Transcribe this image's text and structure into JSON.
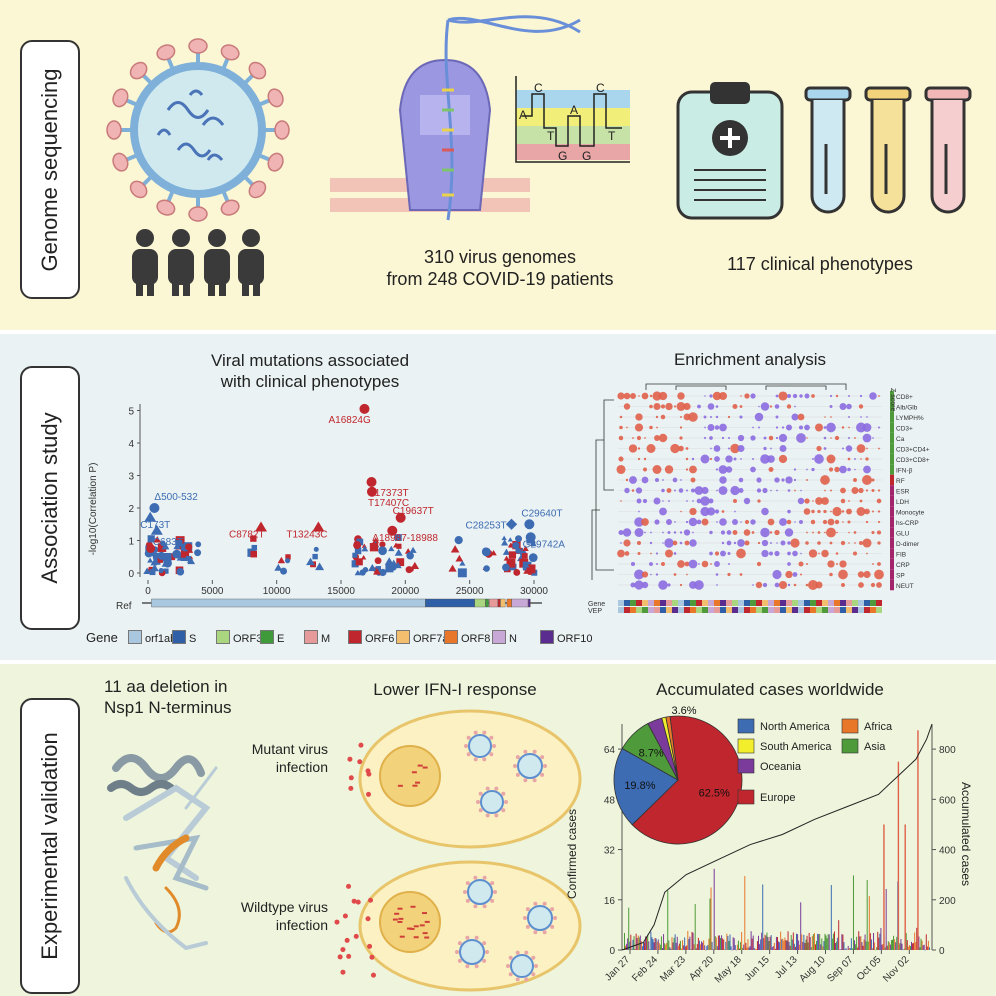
{
  "sections": {
    "genome": "Genome sequencing",
    "association": "Association study",
    "validation": "Experimental validation"
  },
  "sequencing": {
    "genomes_line1": "310 virus genomes",
    "genomes_line2": "from 248 COVID-19 patients",
    "phenotypes": "117 clinical phenotypes",
    "chromatogram_letters": [
      "A",
      "C",
      "T",
      "G",
      "A",
      "G",
      "C",
      "T"
    ]
  },
  "association": {
    "manhattan_title_1": "Viral mutations associated",
    "manhattan_title_2": "with clinical phenotypes",
    "ylabel": "-log10(Correlation P)",
    "ref_label": "Ref",
    "gene_label": "Gene",
    "enrichment_title": "Enrichment analysis",
    "zscore_label": "Z score",
    "gene_row_label": "Gene",
    "vep_row_label": "VEP",
    "annotations": [
      {
        "text": "A16824G",
        "color": "#c0262d"
      },
      {
        "text": "C17373T",
        "color": "#c0262d"
      },
      {
        "text": "T17407C",
        "color": "#c0262d"
      },
      {
        "text": "C19637T",
        "color": "#c0262d"
      },
      {
        "text": "Δ18987-18988",
        "color": "#c0262d"
      },
      {
        "text": "C8782T",
        "color": "#c0262d"
      },
      {
        "text": "T13243C",
        "color": "#c0262d"
      },
      {
        "text": "Δ500-532",
        "color": "#3d6cb3"
      },
      {
        "text": "C173T",
        "color": "#3d6cb3"
      },
      {
        "text": "C683T",
        "color": "#3d6cb3"
      },
      {
        "text": "C28253T",
        "color": "#3d6cb3"
      },
      {
        "text": "C29640T",
        "color": "#3d6cb3"
      },
      {
        "text": "G29742A",
        "color": "#3d6cb3"
      }
    ],
    "genes": [
      {
        "name": "orf1ab",
        "color": "#a9c8e0"
      },
      {
        "name": "S",
        "color": "#2f5fa6"
      },
      {
        "name": "ORF3a",
        "color": "#a9d67e"
      },
      {
        "name": "E",
        "color": "#3f9a3a"
      },
      {
        "name": "M",
        "color": "#e79a9a"
      },
      {
        "name": "ORF6",
        "color": "#c0262d"
      },
      {
        "name": "ORF7a",
        "color": "#f3bf6e"
      },
      {
        "name": "ORF8",
        "color": "#e8772a"
      },
      {
        "name": "N",
        "color": "#c8a8d6"
      },
      {
        "name": "ORF10",
        "color": "#5b2c8f"
      }
    ],
    "heatmap_rows": [
      "CD8+",
      "Alb/Glb",
      "LYMPH%",
      "CD3+",
      "Ca",
      "CD3+CD4+",
      "CD3+CD8+",
      "IFN-β",
      "RF",
      "ESR",
      "LDH",
      "Monocyte",
      "hs-CRP",
      "GLU",
      "D-dimer",
      "FIB",
      "CRP",
      "SP",
      "NEUT"
    ]
  },
  "validation": {
    "deletion_title_1": "11 aa deletion in",
    "deletion_title_2": "Nsp1 N-terminus",
    "ifn_title": "Lower IFN-I response",
    "mutant_1": "Mutant virus",
    "mutant_2": "infection",
    "wild_1": "Wildtype virus",
    "wild_2": "infection",
    "cases_title": "Accumulated cases worldwide"
  },
  "chart_data": {
    "type": "bar",
    "title": "Accumulated cases worldwide",
    "xlabel": "",
    "ylabel": "Confirmed cases",
    "y2label": "Accumulated cases",
    "x_ticks": [
      "Jan 27",
      "Feb 24",
      "Mar 23",
      "Apr 20",
      "May 18",
      "Jun 15",
      "Jul 13",
      "Aug 10",
      "Sep 07",
      "Oct 05",
      "Nov 02"
    ],
    "y_ticks": [
      0,
      16,
      32,
      48,
      64
    ],
    "y2_ticks": [
      0,
      200,
      400,
      600,
      800
    ],
    "ylim": [
      0,
      72
    ],
    "y2lim": [
      0,
      900
    ],
    "pie": {
      "type": "pie",
      "slices": [
        {
          "name": "Europe",
          "value": 62.5,
          "label": "62.5%",
          "color": "#c0262d"
        },
        {
          "name": "North America",
          "value": 19.8,
          "label": "19.8%",
          "color": "#3d6cb3"
        },
        {
          "name": "Asia",
          "value": 8.7,
          "label": "8.7%",
          "color": "#4f9a3a"
        },
        {
          "name": "Oceania",
          "value": 3.6,
          "label": "3.6%",
          "color": "#7a3b9a"
        },
        {
          "name": "South America",
          "value": 1.0,
          "label": "",
          "color": "#f2ee2b"
        },
        {
          "name": "Africa",
          "value": 1.0,
          "label": "",
          "color": "#e8772a"
        }
      ]
    },
    "legend": [
      {
        "name": "North America",
        "color": "#3d6cb3"
      },
      {
        "name": "Africa",
        "color": "#e8772a"
      },
      {
        "name": "South America",
        "color": "#f2ee2b"
      },
      {
        "name": "Asia",
        "color": "#4f9a3a"
      },
      {
        "name": "Oceania",
        "color": "#7a3b9a"
      },
      {
        "name": "Europe",
        "color": "#c0262d"
      }
    ],
    "accumulated_line": [
      [
        0,
        0
      ],
      [
        20,
        30
      ],
      [
        30,
        100
      ],
      [
        40,
        230
      ],
      [
        60,
        300
      ],
      [
        90,
        360
      ],
      [
        120,
        420
      ],
      [
        150,
        460
      ],
      [
        180,
        520
      ],
      [
        210,
        570
      ],
      [
        240,
        620
      ],
      [
        260,
        700
      ],
      [
        275,
        760
      ],
      [
        285,
        840
      ],
      [
        290,
        900
      ]
    ]
  }
}
